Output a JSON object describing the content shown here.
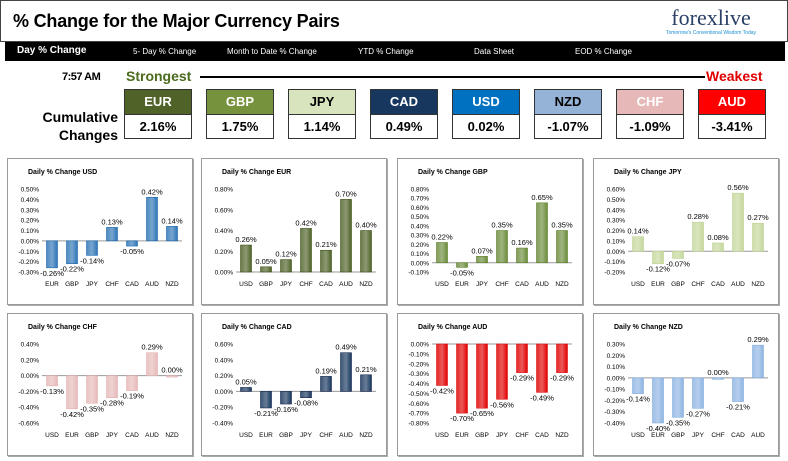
{
  "header": {
    "title": "% Change for the Major Currency Pairs",
    "logo": "forexlive",
    "logo_tagline": "Tomorrow's Conventional Wisdom Today"
  },
  "nav": {
    "tabs": [
      "Day % Change",
      "5- Day % Change",
      "Month to Date % Change",
      "YTD % Change",
      "Data Sheet",
      "EOD % Change"
    ]
  },
  "summary": {
    "time": "7:57 AM",
    "strongest": "Strongest",
    "weakest": "Weakest",
    "label_line1": "Cumulative",
    "label_line2": "Changes",
    "currencies": [
      {
        "code": "EUR",
        "value": "2.16%",
        "color": "#4f6228",
        "text": "#ffffff"
      },
      {
        "code": "GBP",
        "value": "1.75%",
        "color": "#76923c",
        "text": "#ffffff"
      },
      {
        "code": "JPY",
        "value": "1.14%",
        "color": "#d7e4bd",
        "text": "#000000"
      },
      {
        "code": "CAD",
        "value": "0.49%",
        "color": "#17375e",
        "text": "#ffffff"
      },
      {
        "code": "USD",
        "value": "0.02%",
        "color": "#0070c0",
        "text": "#ffffff"
      },
      {
        "code": "NZD",
        "value": "-1.07%",
        "color": "#95b3d7",
        "text": "#000000"
      },
      {
        "code": "CHF",
        "value": "-1.09%",
        "color": "#e6b9b8",
        "text": "#ffffff"
      },
      {
        "code": "AUD",
        "value": "-3.41%",
        "color": "#ff0000",
        "text": "#ffffff"
      }
    ]
  },
  "chart_data": [
    {
      "type": "bar",
      "title": "Daily % Change USD",
      "categories": [
        "EUR",
        "GBP",
        "JPY",
        "CHF",
        "CAD",
        "AUD",
        "NZD"
      ],
      "values": [
        -0.26,
        -0.22,
        -0.14,
        0.13,
        -0.05,
        0.42,
        0.14
      ],
      "labels": [
        "-0.26%",
        "-0.22%",
        "-0.14%",
        "0.13%",
        "-0.05%",
        "0.42%",
        "0.14%"
      ],
      "ylim": [
        -0.3,
        0.5
      ],
      "ticks": [
        "0.50%",
        "0.40%",
        "0.30%",
        "0.20%",
        "0.10%",
        "0.00%",
        "-0.10%",
        "-0.20%",
        "-0.30%"
      ],
      "color": "#2e75b6"
    },
    {
      "type": "bar",
      "title": "Daily % Change EUR",
      "categories": [
        "USD",
        "GBP",
        "JPY",
        "CHF",
        "CAD",
        "AUD",
        "NZD"
      ],
      "values": [
        0.26,
        0.05,
        0.12,
        0.42,
        0.21,
        0.7,
        0.4
      ],
      "labels": [
        "0.26%",
        "0.05%",
        "0.12%",
        "0.42%",
        "0.21%",
        "0.70%",
        "0.40%"
      ],
      "ylim": [
        0,
        0.8
      ],
      "ticks": [
        "0.80%",
        "0.60%",
        "0.40%",
        "0.20%",
        "0.00%"
      ],
      "color": "#4f6228"
    },
    {
      "type": "bar",
      "title": "Daily % Change GBP",
      "categories": [
        "USD",
        "EUR",
        "JPY",
        "CHF",
        "CAD",
        "AUD",
        "NZD"
      ],
      "values": [
        0.22,
        -0.05,
        0.07,
        0.35,
        0.16,
        0.65,
        0.35
      ],
      "labels": [
        "0.22%",
        "-0.05%",
        "0.07%",
        "0.35%",
        "0.16%",
        "0.65%",
        "0.35%"
      ],
      "ylim": [
        -0.1,
        0.8
      ],
      "ticks": [
        "0.80%",
        "0.70%",
        "0.60%",
        "0.50%",
        "0.40%",
        "0.30%",
        "0.20%",
        "0.10%",
        "0.00%",
        "-0.10%"
      ],
      "color": "#6b8c3a"
    },
    {
      "type": "bar",
      "title": "Daily % Change JPY",
      "categories": [
        "USD",
        "EUR",
        "GBP",
        "CHF",
        "CAD",
        "AUD",
        "NZD"
      ],
      "values": [
        0.14,
        -0.12,
        -0.07,
        0.28,
        0.08,
        0.56,
        0.27
      ],
      "labels": [
        "0.14%",
        "-0.12%",
        "-0.07%",
        "0.28%",
        "0.08%",
        "0.56%",
        "0.27%"
      ],
      "ylim": [
        -0.2,
        0.6
      ],
      "ticks": [
        "0.60%",
        "0.50%",
        "0.40%",
        "0.30%",
        "0.20%",
        "0.10%",
        "0.00%",
        "-0.10%",
        "-0.20%"
      ],
      "color": "#c4d79b"
    },
    {
      "type": "bar",
      "title": "Daily % Change CHF",
      "categories": [
        "USD",
        "EUR",
        "GBP",
        "JPY",
        "CAD",
        "AUD",
        "NZD"
      ],
      "values": [
        -0.13,
        -0.42,
        -0.35,
        -0.28,
        -0.19,
        0.29,
        0.0
      ],
      "labels": [
        "-0.13%",
        "-0.42%",
        "-0.35%",
        "-0.28%",
        "-0.19%",
        "0.29%",
        "0.00%"
      ],
      "ylim": [
        -0.6,
        0.4
      ],
      "ticks": [
        "0.40%",
        "0.20%",
        "0.00%",
        "-0.20%",
        "-0.40%",
        "-0.60%"
      ],
      "color": "#e6b9b8"
    },
    {
      "type": "bar",
      "title": "Daily % Change CAD",
      "categories": [
        "USD",
        "EUR",
        "GBP",
        "JPY",
        "CHF",
        "AUD",
        "NZD"
      ],
      "values": [
        0.05,
        -0.21,
        -0.16,
        -0.08,
        0.19,
        0.49,
        0.21
      ],
      "labels": [
        "0.05%",
        "-0.21%",
        "-0.16%",
        "-0.08%",
        "0.19%",
        "0.49%",
        "0.21%"
      ],
      "ylim": [
        -0.4,
        0.6
      ],
      "ticks": [
        "0.60%",
        "0.40%",
        "0.20%",
        "0.00%",
        "-0.20%",
        "-0.40%"
      ],
      "color": "#17375e"
    },
    {
      "type": "bar",
      "title": "Daily % Change AUD",
      "categories": [
        "USD",
        "EUR",
        "GBP",
        "JPY",
        "CHF",
        "CAD",
        "NZD"
      ],
      "values": [
        -0.42,
        -0.7,
        -0.65,
        -0.56,
        -0.29,
        -0.49,
        -0.29
      ],
      "labels": [
        "-0.42%",
        "-0.70%",
        "-0.65%",
        "-0.56%",
        "-0.29%",
        "-0.49%",
        "-0.29%"
      ],
      "ylim": [
        -0.8,
        0.0
      ],
      "ticks": [
        "0.00%",
        "-0.10%",
        "-0.20%",
        "-0.30%",
        "-0.40%",
        "-0.50%",
        "-0.60%",
        "-0.70%",
        "-0.80%"
      ],
      "color": "#e00000"
    },
    {
      "type": "bar",
      "title": "Daily % Change NZD",
      "categories": [
        "USD",
        "EUR",
        "GBP",
        "JPY",
        "CHF",
        "CAD",
        "AUD"
      ],
      "values": [
        -0.14,
        -0.4,
        -0.35,
        -0.27,
        0.0,
        -0.21,
        0.29
      ],
      "labels": [
        "-0.14%",
        "-0.40%",
        "-0.35%",
        "-0.27%",
        "0.00%",
        "-0.21%",
        "0.29%"
      ],
      "ylim": [
        -0.4,
        0.3
      ],
      "ticks": [
        "0.30%",
        "0.20%",
        "0.10%",
        "0.00%",
        "-0.10%",
        "-0.20%",
        "-0.30%",
        "-0.40%"
      ],
      "color": "#8eb4e3"
    }
  ]
}
